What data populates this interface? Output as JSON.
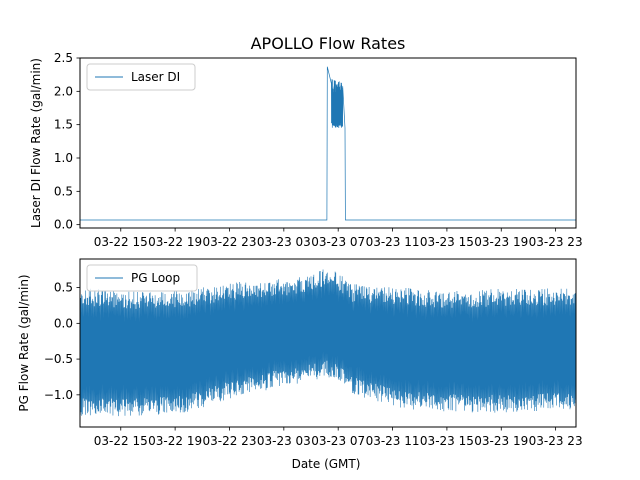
{
  "chart_data": [
    {
      "type": "line",
      "title": "APOLLO Flow Rates",
      "xlabel": "",
      "ylabel": "Laser DI Flow Rate (gal/min)",
      "xlim": [
        "2023-03-22 12:00",
        "2023-03-24 00:30"
      ],
      "ylim": [
        -0.05,
        2.5
      ],
      "yticks": [
        0.0,
        0.5,
        1.0,
        1.5,
        2.0,
        2.5
      ],
      "ytick_labels": [
        "0.0",
        "0.5",
        "1.0",
        "1.5",
        "2.0",
        "2.5"
      ],
      "xticks": [
        "2023-03-22 15:00",
        "2023-03-22 19:00",
        "2023-03-22 23:00",
        "2023-03-23 03:00",
        "2023-03-23 07:00",
        "2023-03-23 11:00",
        "2023-03-23 15:00",
        "2023-03-23 19:00",
        "2023-03-23 23:00"
      ],
      "xtick_labels": [
        "03-22 15",
        "03-22 19",
        "03-22 23",
        "03-23 03",
        "03-23 07",
        "03-23 11",
        "03-23 15",
        "03-23 19",
        "03-23 23"
      ],
      "legend": "upper-left",
      "color": "#1f77b4",
      "series": [
        {
          "name": "Laser DI",
          "x": [
            "2023-03-22 12:00",
            "2023-03-23 06:10",
            "2023-03-23 06:12",
            "2023-03-23 06:30",
            "2023-03-23 07:20",
            "2023-03-23 07:30",
            "2023-03-23 07:32",
            "2023-03-24 00:30"
          ],
          "y": [
            0.07,
            0.07,
            2.37,
            1.45,
            2.2,
            1.45,
            0.07,
            0.07
          ]
        }
      ]
    },
    {
      "type": "line",
      "title": "",
      "xlabel": "Date (GMT)",
      "ylabel": "PG Flow Rate (gal/min)",
      "xlim": [
        "2023-03-22 12:00",
        "2023-03-24 00:30"
      ],
      "ylim": [
        -1.45,
        0.9
      ],
      "yticks": [
        -1.0,
        -0.5,
        0.0,
        0.5
      ],
      "ytick_labels": [
        "−1.0",
        "−0.5",
        "0.0",
        "0.5"
      ],
      "xticks": [
        "2023-03-22 15:00",
        "2023-03-22 19:00",
        "2023-03-22 23:00",
        "2023-03-23 03:00",
        "2023-03-23 07:00",
        "2023-03-23 11:00",
        "2023-03-23 15:00",
        "2023-03-23 19:00",
        "2023-03-23 23:00"
      ],
      "xtick_labels": [
        "03-22 15",
        "03-22 19",
        "03-22 23",
        "03-23 03",
        "03-23 07",
        "03-23 11",
        "03-23 15",
        "03-23 19",
        "03-23 23"
      ],
      "legend": "upper-left",
      "color": "#1f77b4",
      "series": [
        {
          "name": "PG Loop",
          "x": [
            "2023-03-22 12:00",
            "2023-03-22 16:00",
            "2023-03-22 20:00",
            "2023-03-23 00:00",
            "2023-03-23 04:00",
            "2023-03-23 06:30",
            "2023-03-23 08:00",
            "2023-03-23 12:00",
            "2023-03-23 16:00",
            "2023-03-23 20:00",
            "2023-03-24 00:30"
          ],
          "y_max": [
            0.5,
            0.45,
            0.48,
            0.6,
            0.65,
            0.8,
            0.55,
            0.5,
            0.45,
            0.5,
            0.5
          ],
          "y_min": [
            -1.3,
            -1.3,
            -1.25,
            -1.0,
            -0.85,
            -0.75,
            -1.0,
            -1.2,
            -1.25,
            -1.25,
            -1.2
          ]
        }
      ]
    }
  ]
}
